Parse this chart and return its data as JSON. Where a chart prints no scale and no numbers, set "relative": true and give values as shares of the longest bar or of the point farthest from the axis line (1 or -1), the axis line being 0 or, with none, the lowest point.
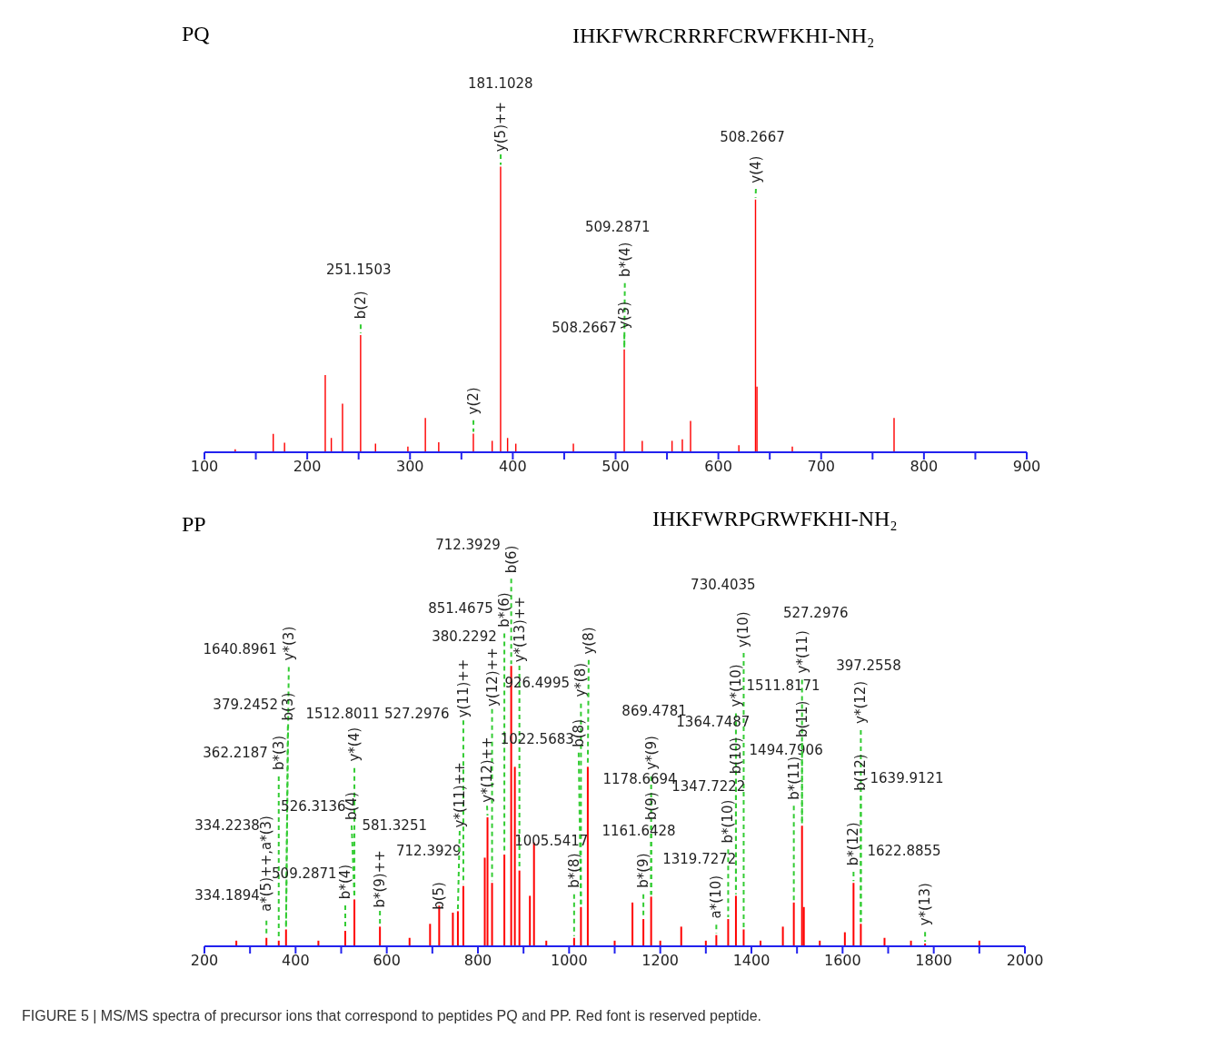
{
  "chart_data": [
    {
      "type": "bar",
      "title": "PQ",
      "subtitle": "IHKFWRCRRRFCRWFKHI-NH₂",
      "relative": true,
      "x": [
        130,
        167,
        178,
        217.6,
        223.5,
        234.4,
        252,
        266.5,
        298,
        315,
        328,
        361.7,
        380,
        388.2,
        395,
        403,
        459,
        508.5,
        526,
        555,
        565,
        573,
        620,
        636.2,
        637.6,
        672,
        771
      ],
      "series": [
        {
          "color": "#ff0000",
          "values": [
            0.01,
            0.064,
            0.033,
            0.27,
            0.05,
            0.17,
            0.41,
            0.03,
            0.02,
            0.12,
            0.035,
            0.065,
            0.04,
            1.0,
            0.05,
            0.03,
            0.03,
            0.36,
            0.04,
            0.04,
            0.045,
            0.11,
            0.025,
            0.885,
            0.23,
            0.02,
            0.12
          ]
        }
      ],
      "xlim": [
        100,
        900
      ],
      "xticks": [
        100,
        {
          "value": 150,
          "label": null
        },
        200,
        {
          "value": 250,
          "label": null
        },
        300,
        {
          "value": 350,
          "label": null
        },
        400,
        {
          "value": 450,
          "label": null
        },
        500,
        {
          "value": 550,
          "label": null
        },
        600,
        {
          "value": 650,
          "label": null
        },
        700,
        {
          "value": 750,
          "label": null
        },
        800,
        {
          "value": 850,
          "label": null
        },
        900
      ],
      "annotations": [
        "251.1503",
        {
          "text": "b(2)",
          "x": 252,
          "y": 0.41
        },
        "181.1028",
        {
          "text": "y(5)++",
          "x": 388.2,
          "y": 1.0
        },
        {
          "text": "y(2)",
          "x": 361.7,
          "y": 0.065
        },
        "509.2871",
        {
          "text": "b*(4)",
          "x": 508.5,
          "y": 0.36
        },
        "508.2667",
        {
          "text": "y(3)",
          "x": 508.5,
          "y": 0.36
        },
        "508.2667",
        {
          "text": "y(4)",
          "x": 636.2,
          "y": 0.885
        }
      ]
    },
    {
      "type": "bar",
      "title": "PP",
      "subtitle": "IHKFWRPGRWFKHI-NH₂",
      "relative": true,
      "x": [
        270,
        336,
        363,
        379,
        450,
        509,
        529,
        585,
        650,
        695,
        715,
        745,
        756,
        768,
        815,
        821,
        831,
        858,
        873,
        881,
        891,
        914,
        923,
        950,
        1011,
        1026,
        1041,
        1100,
        1139,
        1163,
        1180,
        1200,
        1246,
        1300,
        1323,
        1349,
        1366,
        1383,
        1420,
        1469,
        1493,
        1511,
        1515,
        1550,
        1605,
        1624,
        1640,
        1692,
        1750,
        1781,
        1900
      ],
      "series": [
        {
          "color": "#ff0000",
          "values": [
            0.02,
            0.03,
            0.02,
            0.06,
            0.02,
            0.055,
            0.167,
            0.07,
            0.03,
            0.08,
            0.145,
            0.12,
            0.125,
            0.215,
            0.316,
            0.46,
            0.226,
            0.327,
            1.0,
            0.64,
            0.27,
            0.18,
            0.37,
            0.02,
            0.03,
            0.14,
            0.64,
            0.02,
            0.156,
            0.097,
            0.177,
            0.02,
            0.07,
            0.02,
            0.04,
            0.097,
            0.18,
            0.06,
            0.02,
            0.07,
            0.156,
            0.43,
            0.14,
            0.02,
            0.05,
            0.226,
            0.08,
            0.03,
            0.02,
            0.01,
            0.02
          ]
        }
      ],
      "xlim": [
        200,
        2000
      ],
      "xticks": [
        200,
        {
          "value": 300,
          "label": null
        },
        400,
        {
          "value": 500,
          "label": null
        },
        600,
        {
          "value": 700,
          "label": null
        },
        800,
        {
          "value": 900,
          "label": null
        },
        1000,
        {
          "value": 1100,
          "label": null
        },
        1200,
        {
          "value": 1300,
          "label": null
        },
        1400,
        {
          "value": 1500,
          "label": null
        },
        1600,
        {
          "value": 1700,
          "label": null
        },
        1800,
        {
          "value": 1900,
          "label": null
        },
        2000
      ],
      "annotations": [
        "712.3929",
        {
          "text": "b(6)",
          "x": 873,
          "y": 1.0
        },
        "851.4675",
        {
          "text": "b*(6)",
          "x": 858,
          "y": 0.327
        },
        {
          "text": "y*(13)++",
          "x": 891,
          "y": 0.27
        },
        "380.2292",
        {
          "text": "y(12)++",
          "x": 831,
          "y": 0.226
        },
        "1640.8961",
        {
          "text": "y*(3)",
          "x": 379,
          "y": 0.06
        },
        "379.2452",
        {
          "text": "b(3)",
          "x": 379,
          "y": 0.06
        },
        "1512.8011",
        "527.2976",
        {
          "text": "y(11)++",
          "x": 768,
          "y": 0.215
        },
        "926.4995",
        "1022.5683",
        {
          "text": "y*(8)",
          "x": 1026,
          "y": 0.14
        },
        {
          "text": "y(8)",
          "x": 1041,
          "y": 0.64
        },
        {
          "text": "b(8)",
          "x": 1026,
          "y": 0.14
        },
        "362.2187",
        {
          "text": "b*(3)",
          "x": 363,
          "y": 0.02
        },
        "526.3136",
        {
          "text": "y*(4)",
          "x": 529,
          "y": 0.167
        },
        {
          "text": "b(4)",
          "x": 529,
          "y": 0.167
        },
        "581.3251",
        "712.3929",
        {
          "text": "y*(11)++",
          "x": 756,
          "y": 0.125
        },
        {
          "text": "y*(12)++",
          "x": 821,
          "y": 0.46
        },
        "1005.5417",
        "334.2238",
        {
          "text": "a*(5)++,a*(3)",
          "x": 336,
          "y": 0.03
        },
        "509.2871",
        {
          "text": "b*(4)",
          "x": 509,
          "y": 0.055
        },
        {
          "text": "b*(9)++",
          "x": 585,
          "y": 0.07
        },
        {
          "text": "b(5)",
          "x": 715,
          "y": 0.145
        },
        "334.1894",
        "869.4781",
        {
          "text": "y*(9)",
          "x": 1180,
          "y": 0.177
        },
        "1178.6694",
        {
          "text": "b(9)",
          "x": 1180,
          "y": 0.177
        },
        "1161.6428",
        {
          "text": "b*(9)",
          "x": 1163,
          "y": 0.097
        },
        "730.4035",
        {
          "text": "y(10)",
          "x": 1383,
          "y": 0.06
        },
        {
          "text": "y*(10)",
          "x": 1366,
          "y": 0.18
        },
        "1364.7487",
        "1511.8171",
        {
          "text": "b(10)",
          "x": 1366,
          "y": 0.18
        },
        "1494.7906",
        "1347.7222",
        {
          "text": "b*(10)",
          "x": 1349,
          "y": 0.097
        },
        "1319.7272",
        {
          "text": "a*(10)",
          "x": 1323,
          "y": 0.04
        },
        "527.2976",
        {
          "text": "y*(11)",
          "x": 1511,
          "y": 0.43
        },
        {
          "text": "b(11)",
          "x": 1511,
          "y": 0.43
        },
        {
          "text": "b*(11)",
          "x": 1493,
          "y": 0.156
        },
        "397.2558",
        {
          "text": "y*(12)",
          "x": 1640,
          "y": 0.08
        },
        {
          "text": "b(12)",
          "x": 1640,
          "y": 0.08
        },
        "1639.9121",
        {
          "text": "b*(12)",
          "x": 1624,
          "y": 0.226
        },
        "1622.8855",
        {
          "text": "y*(13)",
          "x": 1781,
          "y": 0.01
        },
        {
          "text": "b*(8)",
          "x": 1011,
          "y": 0.03
        },
        "FIGURE 5 | MS/MS spectra of precursor ions that correspond to peptides PQ and PP. Red font is reserved peptide."
      ]
    }
  ]
}
